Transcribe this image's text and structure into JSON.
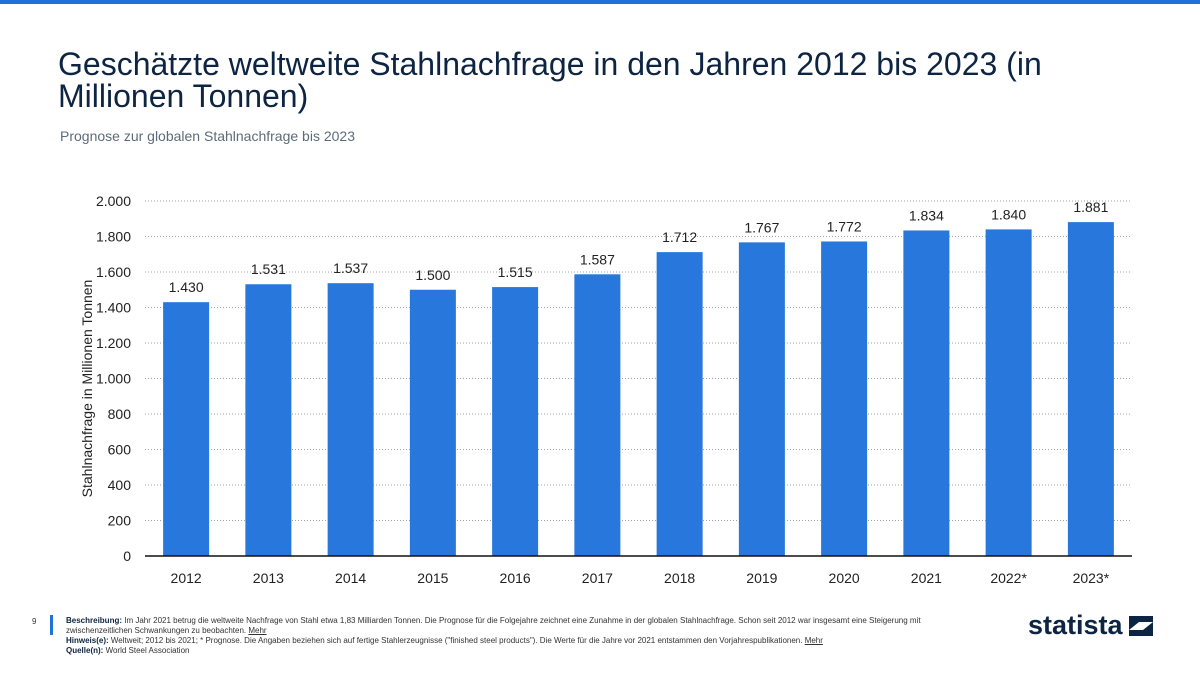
{
  "page": {
    "number": "9",
    "accent": "#1f72d6",
    "bar_color": "#2777dc"
  },
  "header": {
    "title": "Geschätzte weltweite Stahlnachfrage in den Jahren 2012 bis 2023 (in Millionen Tonnen)",
    "subtitle": "Prognose zur globalen Stahlnachfrage bis 2023"
  },
  "chart_data": {
    "type": "bar",
    "title": "Geschätzte weltweite Stahlnachfrage in den Jahren 2012 bis 2023 (in Millionen Tonnen)",
    "xlabel": "",
    "ylabel": "Stahlnachfrage in Millionen Tonnen",
    "ylim": [
      0,
      2000
    ],
    "yticks": [
      0,
      200,
      400,
      600,
      800,
      1000,
      1200,
      1400,
      1600,
      1800,
      2000
    ],
    "ytick_labels": [
      "0",
      "200",
      "400",
      "600",
      "800",
      "1.000",
      "1.200",
      "1.400",
      "1.600",
      "1.800",
      "2.000"
    ],
    "grid": true,
    "categories": [
      "2012",
      "2013",
      "2014",
      "2015",
      "2016",
      "2017",
      "2018",
      "2019",
      "2020",
      "2021",
      "2022*",
      "2023*"
    ],
    "values": [
      1430,
      1531,
      1537,
      1500,
      1515,
      1587,
      1712,
      1767,
      1772,
      1834,
      1840,
      1881
    ],
    "value_labels": [
      "1.430",
      "1.531",
      "1.537",
      "1.500",
      "1.515",
      "1.587",
      "1.712",
      "1.767",
      "1.772",
      "1.834",
      "1.840",
      "1.881"
    ]
  },
  "footer": {
    "description_label": "Beschreibung:",
    "description": " Im Jahr 2021 betrug die weltweite Nachfrage von Stahl etwa 1,83 Milliarden Tonnen. Die Prognose für die Folgejahre zeichnet eine Zunahme in der globalen Stahlnachfrage. Schon seit 2012 war insgesamt eine Steigerung mit zwischenzeitlichen Schwankungen zu beobachten. ",
    "more1": "Mehr",
    "notes_label": "Hinweis(e):",
    "notes": " Weltweit; 2012 bis 2021; * Prognose. Die Angaben beziehen sich auf fertige Stahlerzeugnisse (\"finished steel products\"). Die Werte für die Jahre vor 2021 entstammen den Vorjahrespublikationen. ",
    "more2": "Mehr",
    "source_label": "Quelle(n):",
    "source": " World Steel Association"
  },
  "logo": {
    "text": "statista"
  }
}
